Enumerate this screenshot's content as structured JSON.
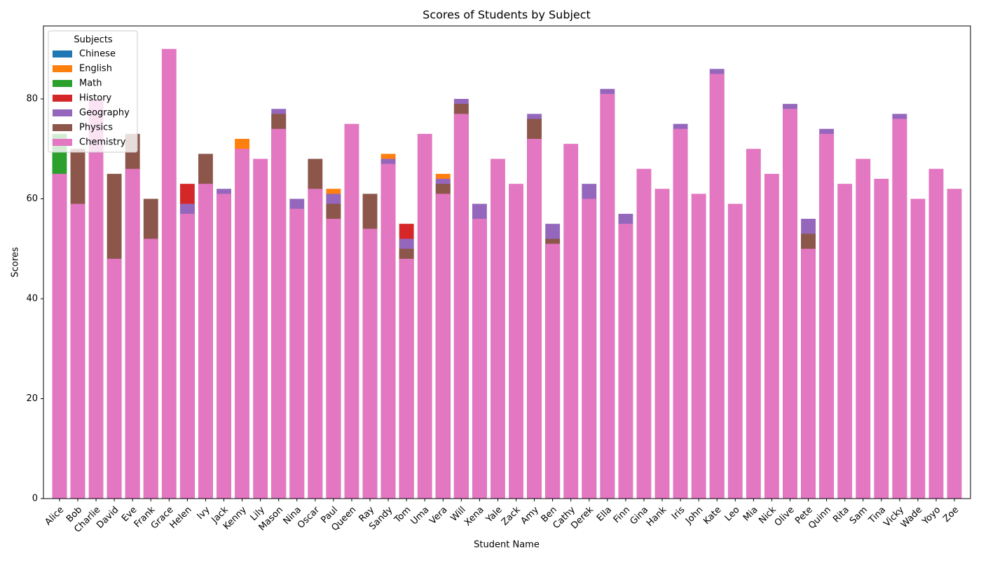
{
  "chart_data": {
    "type": "bar",
    "mode": "overlay",
    "title": "Scores of Students by Subject",
    "x_label": "Student Name",
    "y_label": "Scores",
    "legend_title": "Subjects",
    "legend": "upper left",
    "grid": false,
    "categories": [
      "Alice",
      "Bob",
      "Charlie",
      "David",
      "Eve",
      "Frank",
      "Grace",
      "Helen",
      "Ivy",
      "Jack",
      "Kenny",
      "Lily",
      "Mason",
      "Nina",
      "Oscar",
      "Paul",
      "Queen",
      "Ray",
      "Sandy",
      "Tom",
      "Uma",
      "Vera",
      "Will",
      "Xena",
      "Yale",
      "Zack",
      "Amy",
      "Ben",
      "Cathy",
      "Derek",
      "Ella",
      "Finn",
      "Gina",
      "Hank",
      "Iris",
      "John",
      "Kate",
      "Leo",
      "Mia",
      "Nick",
      "Olive",
      "Pete",
      "Quinn",
      "Rita",
      "Sam",
      "Tina",
      "Vicky",
      "Wade",
      "Yoyo",
      "Zoe"
    ],
    "ylim": [
      0,
      94.6
    ],
    "yticks": [
      0,
      20,
      40,
      60,
      80
    ],
    "series": [
      {
        "name": "Chinese",
        "color": "#1f77b4",
        "values": [
          null,
          null,
          null,
          null,
          null,
          null,
          null,
          null,
          null,
          null,
          null,
          null,
          null,
          null,
          null,
          null,
          null,
          null,
          null,
          null,
          null,
          null,
          null,
          null,
          null,
          null,
          null,
          null,
          null,
          null,
          null,
          null,
          null,
          null,
          null,
          null,
          null,
          null,
          null,
          null,
          null,
          null,
          null,
          null,
          null,
          null,
          null,
          null,
          null,
          null
        ]
      },
      {
        "name": "English",
        "color": "#ff7f0e",
        "values": [
          null,
          null,
          null,
          null,
          null,
          null,
          null,
          null,
          null,
          null,
          72,
          null,
          null,
          null,
          null,
          62,
          null,
          null,
          69,
          null,
          null,
          65,
          null,
          null,
          null,
          null,
          null,
          null,
          null,
          null,
          null,
          null,
          null,
          null,
          null,
          null,
          null,
          null,
          null,
          null,
          null,
          null,
          null,
          null,
          null,
          null,
          null,
          null,
          null,
          null
        ]
      },
      {
        "name": "Math",
        "color": "#2ca02c",
        "values": [
          73,
          null,
          null,
          null,
          null,
          null,
          null,
          null,
          null,
          null,
          null,
          null,
          null,
          null,
          null,
          null,
          null,
          null,
          null,
          null,
          null,
          null,
          null,
          null,
          null,
          null,
          null,
          null,
          null,
          null,
          null,
          null,
          null,
          null,
          null,
          null,
          null,
          null,
          null,
          null,
          null,
          null,
          null,
          null,
          null,
          null,
          null,
          null,
          null,
          null
        ]
      },
      {
        "name": "History",
        "color": "#d62728",
        "values": [
          null,
          null,
          null,
          null,
          null,
          null,
          null,
          63,
          null,
          null,
          null,
          null,
          null,
          null,
          null,
          null,
          null,
          null,
          null,
          55,
          null,
          null,
          null,
          null,
          null,
          null,
          null,
          null,
          null,
          null,
          null,
          null,
          null,
          null,
          null,
          null,
          null,
          null,
          null,
          null,
          null,
          null,
          null,
          null,
          null,
          null,
          null,
          null,
          null,
          null
        ]
      },
      {
        "name": "Geography",
        "color": "#9467bd",
        "values": [
          null,
          null,
          null,
          null,
          null,
          null,
          null,
          59,
          null,
          62,
          null,
          null,
          78,
          60,
          null,
          61,
          null,
          null,
          68,
          52,
          null,
          64,
          80,
          59,
          null,
          null,
          77,
          55,
          null,
          63,
          82,
          57,
          null,
          null,
          75,
          null,
          86,
          null,
          null,
          null,
          79,
          56,
          74,
          null,
          null,
          null,
          77,
          null,
          null,
          null
        ]
      },
      {
        "name": "Physics",
        "color": "#8c564b",
        "values": [
          null,
          70,
          null,
          65,
          73,
          60,
          null,
          null,
          69,
          null,
          null,
          null,
          77,
          null,
          68,
          59,
          null,
          61,
          null,
          50,
          null,
          63,
          79,
          null,
          null,
          null,
          76,
          52,
          null,
          null,
          null,
          null,
          null,
          null,
          null,
          null,
          null,
          null,
          null,
          null,
          null,
          53,
          null,
          null,
          null,
          null,
          null,
          null,
          null,
          null
        ]
      },
      {
        "name": "Chemistry",
        "color": "#e377c2",
        "values": [
          65,
          59,
          80,
          48,
          66,
          52,
          90,
          57,
          63,
          61,
          70,
          68,
          74,
          58,
          62,
          56,
          75,
          54,
          67,
          48,
          73,
          61,
          77,
          56,
          68,
          63,
          72,
          51,
          71,
          60,
          81,
          55,
          66,
          62,
          74,
          61,
          85,
          59,
          70,
          65,
          78,
          50,
          73,
          63,
          68,
          64,
          76,
          60,
          66,
          62
        ]
      }
    ]
  }
}
